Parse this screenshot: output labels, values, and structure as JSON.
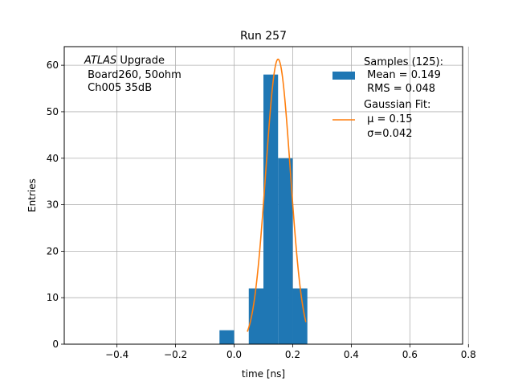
{
  "chart_data": {
    "type": "bar",
    "title": "Run 257",
    "xlabel": "time [ns]",
    "ylabel": "Entries",
    "xlim": [
      -0.58,
      0.78
    ],
    "ylim": [
      0,
      64
    ],
    "grid": true,
    "xticks": [
      -0.4,
      -0.2,
      0.0,
      0.2,
      0.4,
      0.6,
      0.8
    ],
    "xtick_labels": [
      "−0.4",
      "−0.2",
      "0.0",
      "0.2",
      "0.4",
      "0.6",
      "0.8"
    ],
    "yticks": [
      0,
      10,
      20,
      30,
      40,
      50,
      60
    ],
    "ytick_labels": [
      "0",
      "10",
      "20",
      "30",
      "40",
      "50",
      "60"
    ],
    "histogram": {
      "name": "Samples (125):",
      "color": "#1f77b4",
      "bins": [
        {
          "x0": -0.05,
          "x1": 0.0,
          "count": 3
        },
        {
          "x0": 0.0,
          "x1": 0.05,
          "count": 0
        },
        {
          "x0": 0.05,
          "x1": 0.1,
          "count": 12
        },
        {
          "x0": 0.1,
          "x1": 0.15,
          "count": 58
        },
        {
          "x0": 0.15,
          "x1": 0.2,
          "count": 40
        },
        {
          "x0": 0.2,
          "x1": 0.25,
          "count": 12
        }
      ]
    },
    "fit": {
      "name": "Gaussian Fit:",
      "color": "#ff7f0e",
      "mu": 0.15,
      "sigma": 0.042,
      "amplitude": 61.3,
      "x_range": [
        0.045,
        0.245
      ]
    },
    "legend": {
      "placement": "top-right",
      "samples_title": "Samples (125):",
      "samples_mean": " Mean = 0.149",
      "samples_rms": " RMS = 0.048",
      "fit_title": "Gaussian Fit:",
      "fit_mu": " μ = 0.15",
      "fit_sigma": " σ=0.042"
    },
    "annotation": {
      "line1_italic": "ATLAS",
      "line1_rest": " Upgrade",
      "line2": " Board260, 50ohm",
      "line3": " Ch005 35dB"
    }
  }
}
